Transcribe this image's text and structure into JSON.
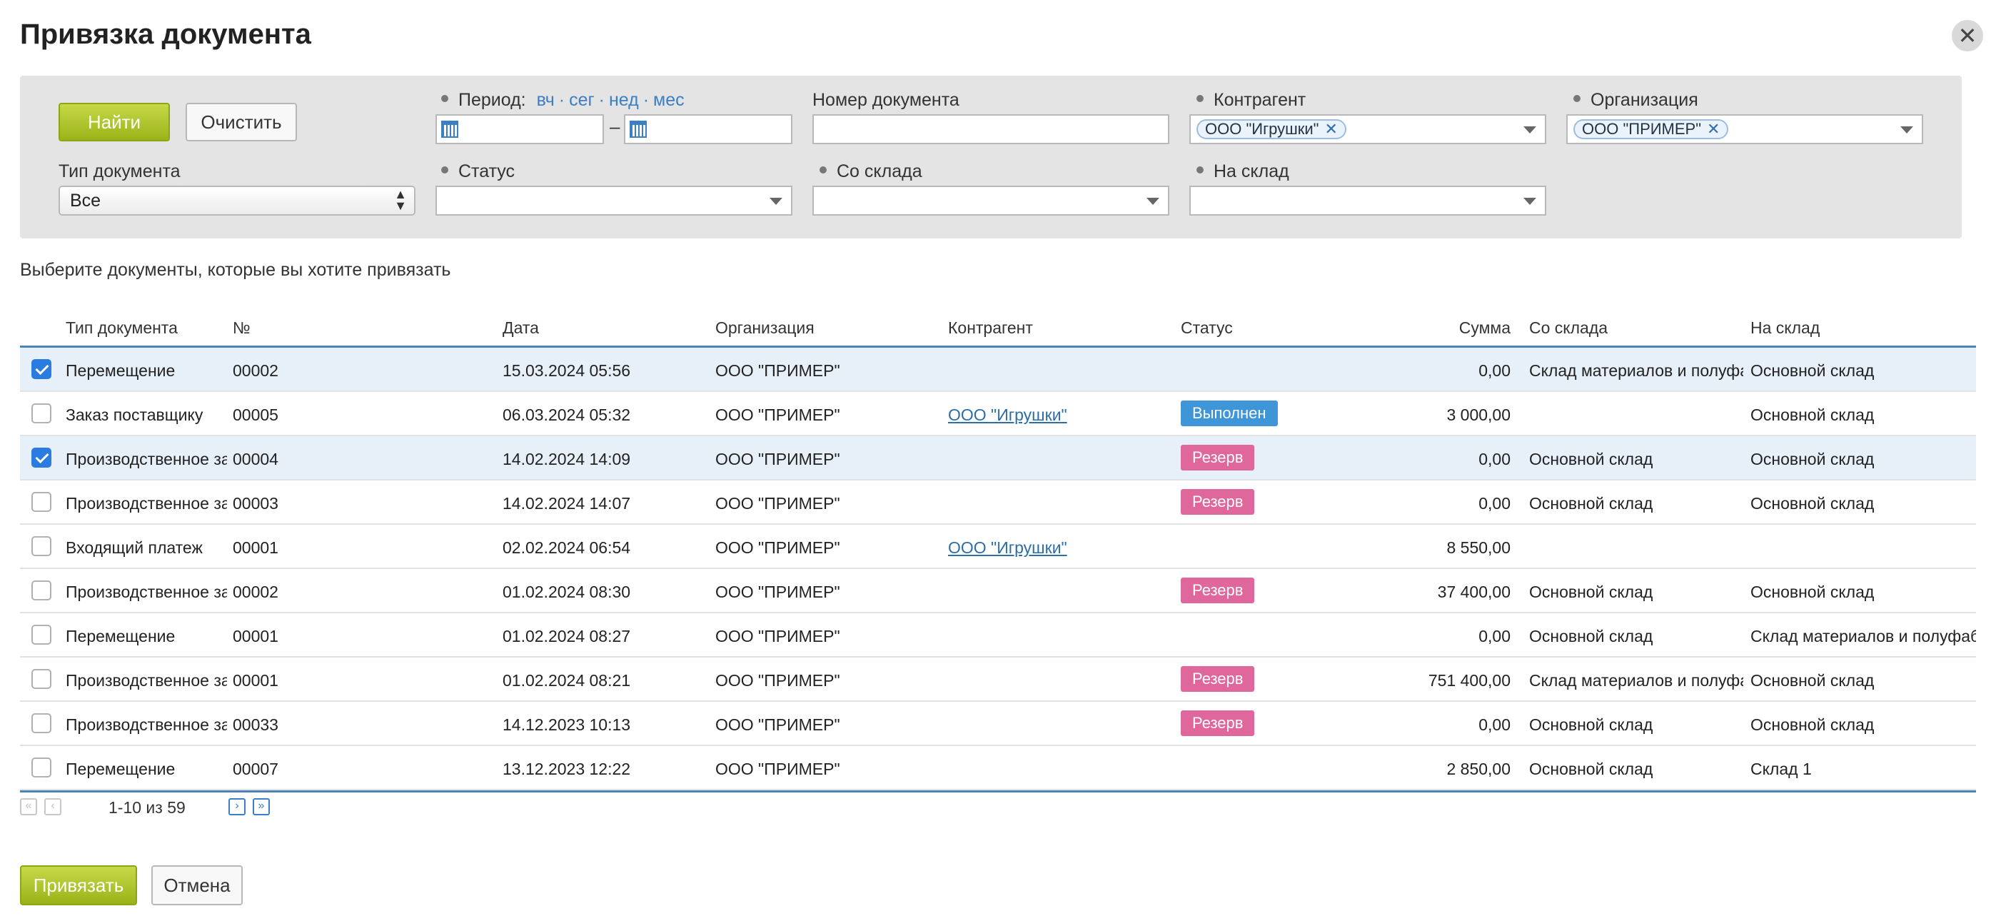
{
  "dialog": {
    "title": "Привязка документа"
  },
  "filters": {
    "find_label": "Найти",
    "clear_label": "Очистить",
    "period_label": "Период:",
    "period_links": [
      "вч",
      "сег",
      "нед",
      "мес"
    ],
    "period_from": "",
    "period_to": "",
    "doc_number_label": "Номер документа",
    "doc_number_value": "",
    "counterparty_label": "Контрагент",
    "counterparty_token": "ООО \"Игрушки\"",
    "organization_label": "Организация",
    "organization_token": "ООО \"ПРИМЕР\"",
    "doc_type_label": "Тип документа",
    "doc_type_value": "Все",
    "status_label": "Статус",
    "status_value": "",
    "from_warehouse_label": "Со склада",
    "from_warehouse_value": "",
    "to_warehouse_label": "На склад",
    "to_warehouse_value": ""
  },
  "hint": "Выберите документы, которые вы хотите привязать",
  "table": {
    "headers": [
      "Тип документа",
      "№",
      "Дата",
      "Организация",
      "Контрагент",
      "Статус",
      "Сумма",
      "Со склада",
      "На склад"
    ],
    "rows": [
      {
        "checked": true,
        "type": "Перемещение",
        "num": "00002",
        "date": "15.03.2024 05:56",
        "org": "ООО \"ПРИМЕР\"",
        "counterparty": "",
        "status": "",
        "sum": "0,00",
        "from": "Склад материалов и полуфабрикатов",
        "to": "Основной склад"
      },
      {
        "checked": false,
        "type": "Заказ поставщику",
        "num": "00005",
        "date": "06.03.2024 05:32",
        "org": "ООО \"ПРИМЕР\"",
        "counterparty": "ООО \"Игрушки\"",
        "status": "Выполнен",
        "sum": "3 000,00",
        "from": "",
        "to": "Основной склад"
      },
      {
        "checked": true,
        "type": "Производственное задание",
        "num": "00004",
        "date": "14.02.2024 14:09",
        "org": "ООО \"ПРИМЕР\"",
        "counterparty": "",
        "status": "Резерв",
        "sum": "0,00",
        "from": "Основной склад",
        "to": "Основной склад"
      },
      {
        "checked": false,
        "type": "Производственное задание",
        "num": "00003",
        "date": "14.02.2024 14:07",
        "org": "ООО \"ПРИМЕР\"",
        "counterparty": "",
        "status": "Резерв",
        "sum": "0,00",
        "from": "Основной склад",
        "to": "Основной склад"
      },
      {
        "checked": false,
        "type": "Входящий платеж",
        "num": "00001",
        "date": "02.02.2024 06:54",
        "org": "ООО \"ПРИМЕР\"",
        "counterparty": "ООО \"Игрушки\"",
        "status": "",
        "sum": "8 550,00",
        "from": "",
        "to": ""
      },
      {
        "checked": false,
        "type": "Производственное задание",
        "num": "00002",
        "date": "01.02.2024 08:30",
        "org": "ООО \"ПРИМЕР\"",
        "counterparty": "",
        "status": "Резерв",
        "sum": "37 400,00",
        "from": "Основной склад",
        "to": "Основной склад"
      },
      {
        "checked": false,
        "type": "Перемещение",
        "num": "00001",
        "date": "01.02.2024 08:27",
        "org": "ООО \"ПРИМЕР\"",
        "counterparty": "",
        "status": "",
        "sum": "0,00",
        "from": "Основной склад",
        "to": "Склад материалов и полуфабрикатов"
      },
      {
        "checked": false,
        "type": "Производственное задание",
        "num": "00001",
        "date": "01.02.2024 08:21",
        "org": "ООО \"ПРИМЕР\"",
        "counterparty": "",
        "status": "Резерв",
        "sum": "751 400,00",
        "from": "Склад материалов и полуфабрикатов",
        "to": "Основной склад"
      },
      {
        "checked": false,
        "type": "Производственное задание",
        "num": "00033",
        "date": "14.12.2023 10:13",
        "org": "ООО \"ПРИМЕР\"",
        "counterparty": "",
        "status": "Резерв",
        "sum": "0,00",
        "from": "Основной склад",
        "to": "Основной склад"
      },
      {
        "checked": false,
        "type": "Перемещение",
        "num": "00007",
        "date": "13.12.2023 12:22",
        "org": "ООО \"ПРИМЕР\"",
        "counterparty": "",
        "status": "",
        "sum": "2 850,00",
        "from": "Основной склад",
        "to": "Склад 1"
      }
    ]
  },
  "status_colors": {
    "Выполнен": "#3e95d8",
    "Резерв": "#e0679c"
  },
  "pager": {
    "info": "1-10 из 59",
    "first": "«",
    "prev": "‹",
    "next": "›",
    "last": "»"
  },
  "actions": {
    "bind_label": "Привязать",
    "cancel_label": "Отмена"
  }
}
